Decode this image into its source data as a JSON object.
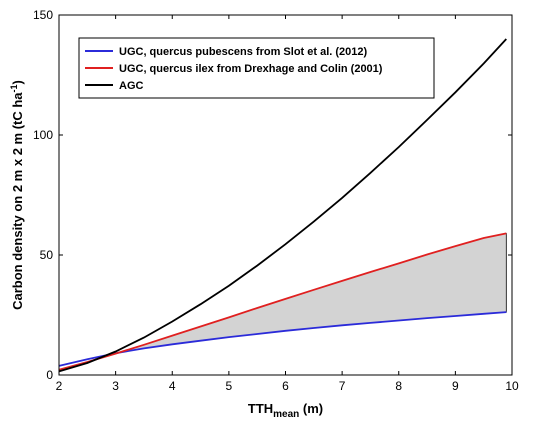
{
  "chart_data": {
    "type": "line",
    "xlabel": "TTH",
    "xlabel_sub": "mean",
    "xlabel_unit": " (m)",
    "ylabel": "Carbon density on 2 m x 2 m (tC ha",
    "ylabel_sup": "-1",
    "ylabel_close": ")",
    "xlim": [
      2,
      10
    ],
    "ylim": [
      0,
      150
    ],
    "xticks": [
      2,
      3,
      4,
      5,
      6,
      7,
      8,
      9,
      10
    ],
    "yticks": [
      0,
      50,
      100,
      150
    ],
    "grid": false,
    "legend_position": "top-left",
    "x": [
      2.0,
      2.5,
      3.0,
      3.5,
      4.0,
      4.5,
      5.0,
      5.5,
      6.0,
      6.5,
      7.0,
      7.5,
      8.0,
      8.5,
      9.0,
      9.5,
      9.9
    ],
    "series": [
      {
        "name": "UGC, quercus pubescens from Slot et al. (2012)",
        "color": "#2b2bd9",
        "values": [
          3.8,
          6.6,
          9.1,
          11.1,
          12.8,
          14.3,
          15.8,
          17.1,
          18.4,
          19.6,
          20.7,
          21.7,
          22.7,
          23.7,
          24.6,
          25.5,
          26.2
        ]
      },
      {
        "name": "UGC, quercus ilex from Drexhage and Colin (2001)",
        "color": "#e02020",
        "values": [
          2.2,
          5.4,
          8.9,
          12.6,
          16.4,
          20.2,
          24.0,
          27.9,
          31.7,
          35.5,
          39.2,
          42.9,
          46.5,
          50.2,
          53.7,
          57.1,
          59.0
        ]
      },
      {
        "name": "AGC",
        "color": "#000000",
        "values": [
          1.5,
          5.0,
          9.8,
          15.6,
          22.3,
          29.5,
          37.2,
          45.6,
          54.5,
          63.9,
          73.8,
          84.2,
          95.0,
          106.3,
          117.8,
          129.8,
          140.0
        ]
      }
    ],
    "shaded_between": [
      "UGC, quercus pubescens from Slot et al. (2012)",
      "UGC, quercus ilex from Drexhage and Colin (2001)"
    ],
    "shade_color": "#d3d3d3"
  }
}
